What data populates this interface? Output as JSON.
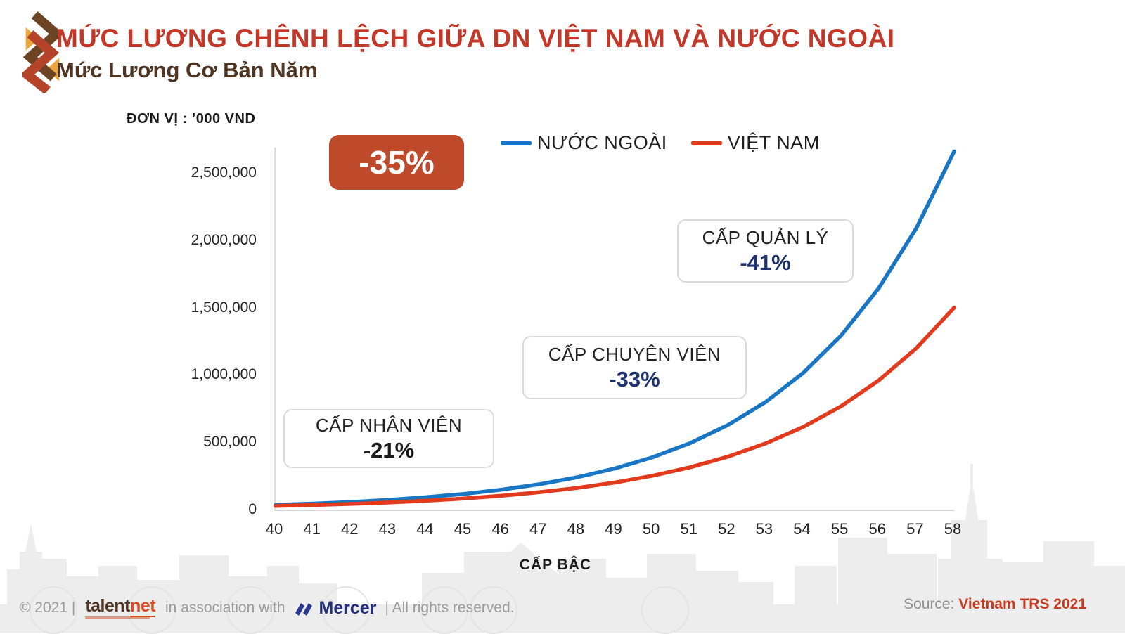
{
  "header": {
    "title": "MỨC LƯƠNG CHÊNH LỆCH GIỮA DN VIỆT NAM VÀ NƯỚC NGOÀI",
    "subtitle": "Mức Lương Cơ Bản Năm",
    "title_color": "#c23728",
    "subtitle_color": "#4f3422"
  },
  "unit_label": "ĐƠN VỊ : ’000 VND",
  "badge": {
    "label": "-35%",
    "bg_color": "#bf4a2b",
    "text_color": "#ffffff"
  },
  "annotations": [
    {
      "label": "CẤP NHÂN VIÊN",
      "value": "-21%",
      "value_color": "#1a1a1a"
    },
    {
      "label": "CẤP CHUYÊN VIÊN",
      "value": "-33%",
      "value_color": "#1e3272"
    },
    {
      "label": "CẤP QUẢN LÝ",
      "value": "-41%",
      "value_color": "#1e3272"
    }
  ],
  "chart_data": {
    "type": "line",
    "title": "Mức Lương Cơ Bản Năm",
    "xlabel": "CẤP BẬC",
    "ylabel": "ĐƠN VỊ : ’000 VND",
    "x": [
      40,
      41,
      42,
      43,
      44,
      45,
      46,
      47,
      48,
      49,
      50,
      51,
      52,
      53,
      54,
      55,
      56,
      57,
      58
    ],
    "series": [
      {
        "name": "NƯỚC NGOÀI",
        "color": "#1976c5",
        "values": [
          35000,
          44500,
          56600,
          72000,
          91600,
          116500,
          148200,
          188600,
          239900,
          305100,
          388100,
          493600,
          627900,
          798700,
          1016000,
          1292300,
          1643800,
          2090900,
          2659700
        ]
      },
      {
        "name": "VIỆT NAM",
        "color": "#e23a1d",
        "values": [
          27000,
          33800,
          42200,
          52700,
          65900,
          82400,
          103000,
          128700,
          160900,
          201200,
          251500,
          314300,
          392900,
          491100,
          613900,
          767400,
          959200,
          1199000,
          1498800
        ]
      }
    ],
    "ylim": [
      0,
      2700000
    ],
    "yticks": [
      0,
      500000,
      1000000,
      1500000,
      2000000,
      2500000
    ],
    "ytick_labels": [
      "0",
      "500,000",
      "1,000,000",
      "1,500,000",
      "2,000,000",
      "2,500,000"
    ],
    "grid": false,
    "legend_position": "top"
  },
  "footer": {
    "copyright": "© 2021 |",
    "talentnet_part1": "talent",
    "talentnet_part2": "net",
    "association": "in association with",
    "mercer": "Mercer",
    "rights": "| All rights reserved.",
    "source_label": "Source:",
    "source_value": "Vietnam TRS 2021",
    "source_value_color": "#c8391f"
  }
}
